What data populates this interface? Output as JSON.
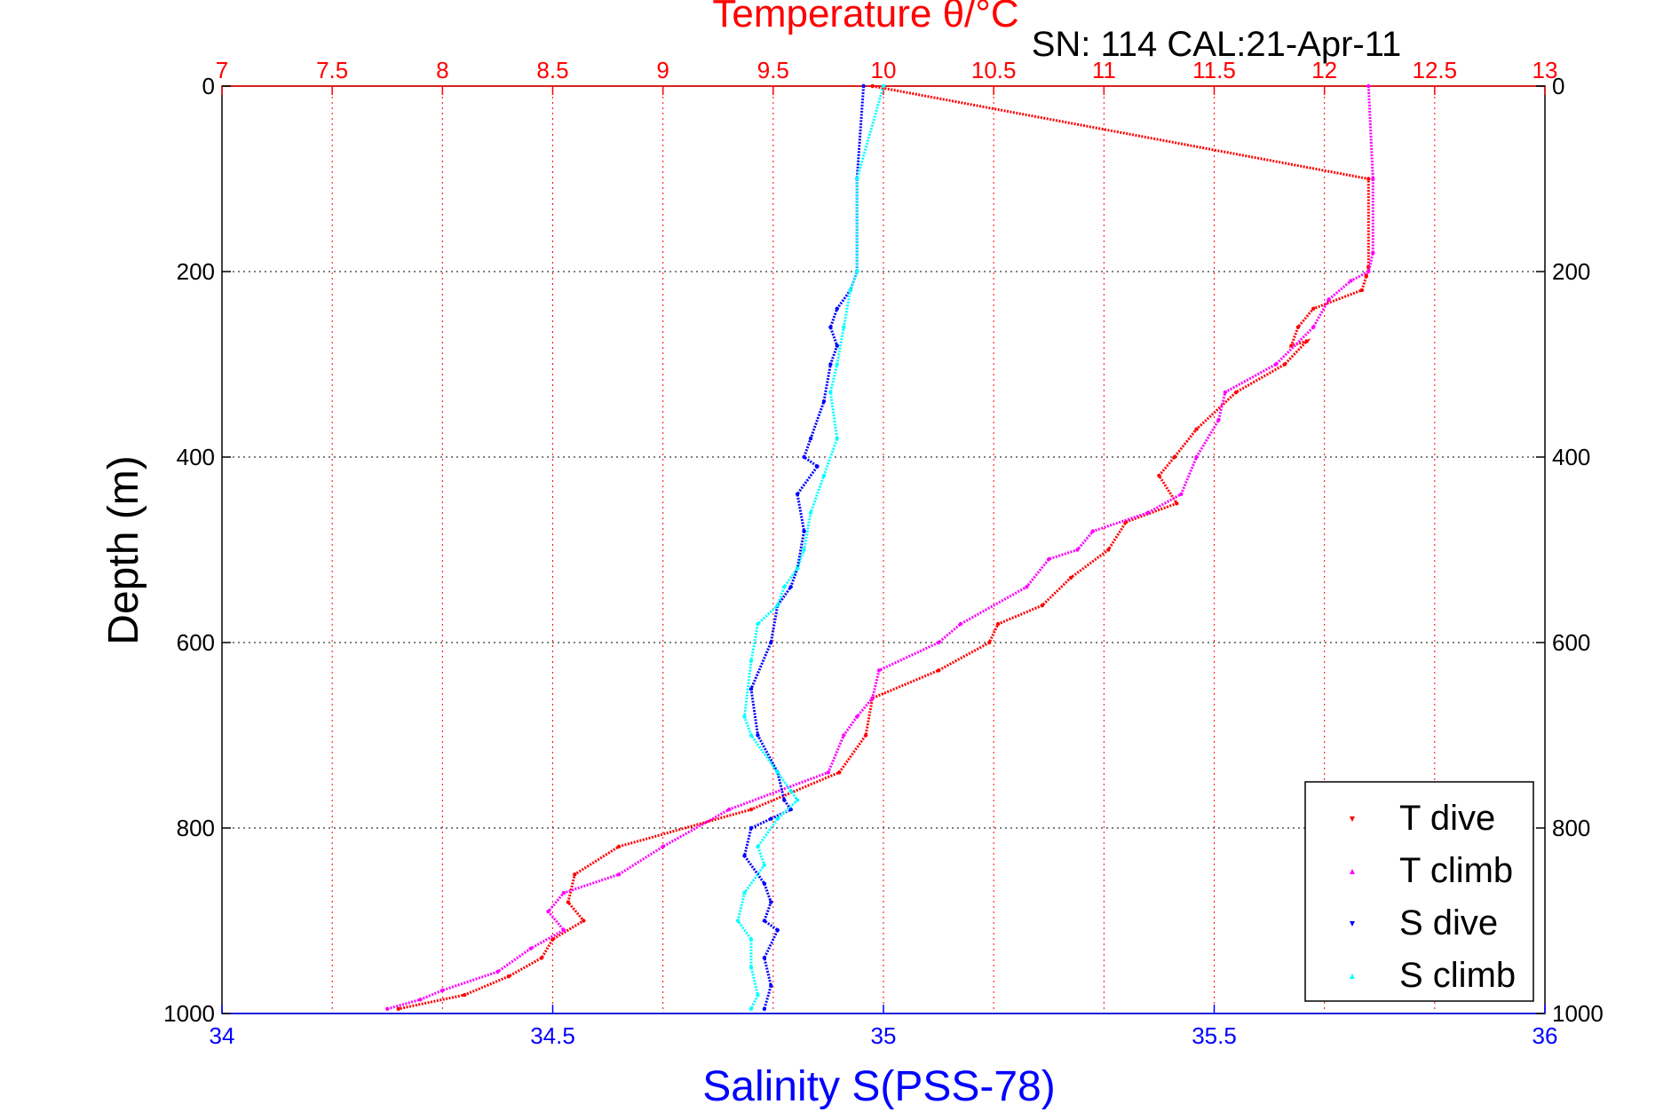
{
  "chart_data": {
    "type": "scatter",
    "title": "Temperature θ/°C",
    "subtitle": "SN: 114  CAL:21-Apr-11",
    "xlabel": "Salinity S(PSS-78)",
    "ylabel": "Depth (m)",
    "top_axis": {
      "label": "Temperature θ/°C",
      "range": [
        7,
        13
      ],
      "ticks": [
        "7",
        "7.5",
        "8",
        "8.5",
        "9",
        "9.5",
        "10",
        "10.5",
        "11",
        "11.5",
        "12",
        "12.5",
        "13"
      ],
      "tick_values": [
        7,
        7.5,
        8,
        8.5,
        9,
        9.5,
        10,
        10.5,
        11,
        11.5,
        12,
        12.5,
        13
      ],
      "color": "#ff0000"
    },
    "bottom_axis": {
      "label": "Salinity S(PSS-78)",
      "range": [
        34,
        36
      ],
      "ticks": [
        "34",
        "34.5",
        "35",
        "35.5",
        "36"
      ],
      "tick_values": [
        34,
        34.5,
        35,
        35.5,
        36
      ],
      "color": "#0000ff"
    },
    "y_axis": {
      "label": "Depth (m)",
      "range": [
        0,
        1000
      ],
      "reversed": true,
      "ticks": [
        "0",
        "200",
        "400",
        "600",
        "800",
        "1000"
      ],
      "tick_values": [
        0,
        200,
        400,
        600,
        800,
        1000
      ]
    },
    "grid": true,
    "legend_position": "bottom-right",
    "series": [
      {
        "name": "T dive",
        "axis": "top",
        "color": "#ff0000",
        "marker": "triangle-down",
        "x": [
          9.95,
          12.2,
          12.2,
          12.19,
          12.17,
          11.95,
          11.88,
          11.85,
          11.92,
          11.82,
          11.6,
          11.42,
          11.32,
          11.25,
          11.33,
          11.1,
          11.02,
          10.85,
          10.72,
          10.52,
          10.48,
          10.25,
          9.95,
          9.92,
          9.8,
          9.4,
          8.8,
          8.6,
          8.57,
          8.64,
          8.5,
          8.45,
          8.3,
          8.1,
          7.8
        ],
        "y": [
          0,
          100,
          195,
          205,
          220,
          240,
          260,
          280,
          275,
          300,
          330,
          370,
          400,
          420,
          450,
          470,
          500,
          530,
          560,
          580,
          600,
          630,
          660,
          700,
          740,
          780,
          820,
          850,
          880,
          900,
          920,
          940,
          960,
          980,
          995
        ]
      },
      {
        "name": "T climb",
        "axis": "top",
        "color": "#ff00ff",
        "marker": "triangle-up",
        "x": [
          12.2,
          12.22,
          12.22,
          12.2,
          12.12,
          12.02,
          11.95,
          11.78,
          11.55,
          11.52,
          11.42,
          11.35,
          11.2,
          10.95,
          10.88,
          10.75,
          10.65,
          10.35,
          10.25,
          9.98,
          9.95,
          9.88,
          9.82,
          9.75,
          9.3,
          9.0,
          8.8,
          8.55,
          8.48,
          8.55,
          8.4,
          8.25,
          8.0,
          7.9,
          7.75
        ],
        "y": [
          0,
          100,
          180,
          200,
          210,
          230,
          260,
          300,
          330,
          360,
          400,
          440,
          460,
          480,
          500,
          510,
          540,
          580,
          600,
          630,
          660,
          680,
          700,
          740,
          780,
          820,
          850,
          870,
          890,
          910,
          930,
          955,
          975,
          985,
          995
        ]
      },
      {
        "name": "S dive",
        "axis": "bottom",
        "color": "#0000ff",
        "marker": "triangle-down",
        "x": [
          34.97,
          34.96,
          34.96,
          34.95,
          34.93,
          34.92,
          34.93,
          34.92,
          34.91,
          34.89,
          34.88,
          34.9,
          34.87,
          34.88,
          34.87,
          34.86,
          34.84,
          34.83,
          34.8,
          34.81,
          34.84,
          34.85,
          34.86,
          34.83,
          34.8,
          34.79,
          34.82,
          34.83,
          34.82,
          34.84,
          34.82,
          34.83,
          34.82
        ],
        "y": [
          0,
          100,
          200,
          220,
          240,
          260,
          280,
          300,
          340,
          380,
          400,
          410,
          440,
          480,
          520,
          540,
          560,
          600,
          650,
          700,
          740,
          770,
          780,
          790,
          800,
          830,
          860,
          880,
          900,
          910,
          940,
          970,
          995
        ]
      },
      {
        "name": "S climb",
        "axis": "bottom",
        "color": "#00ffff",
        "marker": "triangle-up",
        "x": [
          35.0,
          34.96,
          34.96,
          34.95,
          34.94,
          34.93,
          34.92,
          34.93,
          34.91,
          34.89,
          34.88,
          34.87,
          34.85,
          34.84,
          34.81,
          34.8,
          34.79,
          34.8,
          34.84,
          34.86,
          34.87,
          34.84,
          34.81,
          34.82,
          34.79,
          34.78,
          34.8,
          34.8,
          34.81,
          34.8
        ],
        "y": [
          0,
          100,
          200,
          220,
          260,
          300,
          330,
          380,
          420,
          460,
          500,
          520,
          540,
          560,
          580,
          620,
          680,
          700,
          740,
          760,
          770,
          790,
          820,
          840,
          870,
          900,
          920,
          950,
          980,
          995
        ]
      }
    ]
  }
}
